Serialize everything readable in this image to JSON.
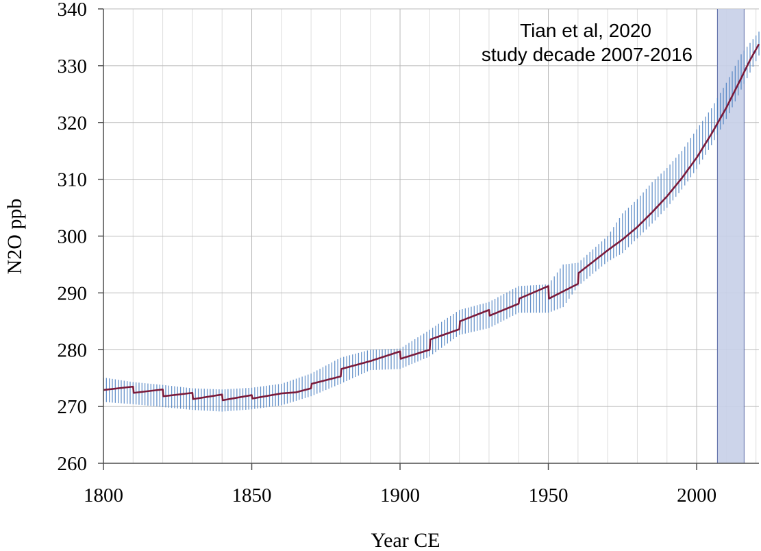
{
  "chart_data": {
    "type": "line",
    "title": "",
    "xlabel": "Year CE",
    "ylabel": "N2O ppb",
    "xlim": [
      1800,
      2021
    ],
    "ylim": [
      260,
      340
    ],
    "x_ticks": [
      "1800",
      "1850",
      "1900",
      "1950",
      "2000"
    ],
    "y_ticks": [
      "260",
      "270",
      "280",
      "290",
      "300",
      "310",
      "320",
      "330",
      "340"
    ],
    "grid": true,
    "series": [
      {
        "color": "#7a1a3a",
        "points": [
          [
            1800,
            272.9
          ],
          [
            1810,
            273.5
          ],
          [
            1810.2,
            272.4
          ],
          [
            1820,
            273.0
          ],
          [
            1820.2,
            271.8
          ],
          [
            1830,
            272.4
          ],
          [
            1830.2,
            271.3
          ],
          [
            1840,
            272.1
          ],
          [
            1840.2,
            271.1
          ],
          [
            1850,
            272.0
          ],
          [
            1850.2,
            271.4
          ],
          [
            1860,
            272.3
          ],
          [
            1865,
            272.5
          ],
          [
            1870,
            273.2
          ],
          [
            1870.2,
            274.0
          ],
          [
            1880,
            275.3
          ],
          [
            1880.2,
            276.6
          ],
          [
            1890,
            278.0
          ],
          [
            1900,
            279.7
          ],
          [
            1900.2,
            278.4
          ],
          [
            1910,
            280.0
          ],
          [
            1910.2,
            281.8
          ],
          [
            1920,
            283.6
          ],
          [
            1920.2,
            285.0
          ],
          [
            1930,
            287.0
          ],
          [
            1930.2,
            286.0
          ],
          [
            1940,
            288.1
          ],
          [
            1940.2,
            289.0
          ],
          [
            1950,
            291.2
          ],
          [
            1950.2,
            289.0
          ],
          [
            1960,
            291.6
          ],
          [
            1960.2,
            293.5
          ],
          [
            1970,
            297.5
          ],
          [
            1975,
            299.4
          ],
          [
            1980,
            301.6
          ],
          [
            1985,
            304.2
          ],
          [
            1990,
            307.0
          ],
          [
            1995,
            310.2
          ],
          [
            2000,
            313.8
          ],
          [
            2005,
            318.0
          ],
          [
            2010,
            322.6
          ],
          [
            2015,
            327.8
          ],
          [
            2018,
            331.0
          ],
          [
            2021,
            333.8
          ]
        ]
      }
    ],
    "uncertainty_band": {
      "color": "#4a7fc1",
      "style": "vertical hatching",
      "bounds": [
        [
          1800,
          270.8,
          275.1
        ],
        [
          1810,
          270.4,
          274.3
        ],
        [
          1820,
          269.9,
          273.8
        ],
        [
          1830,
          269.4,
          273.2
        ],
        [
          1840,
          269.1,
          273.0
        ],
        [
          1850,
          269.5,
          273.3
        ],
        [
          1860,
          270.2,
          274.0
        ],
        [
          1870,
          271.8,
          275.8
        ],
        [
          1880,
          274.0,
          278.6
        ],
        [
          1890,
          276.4,
          280.0
        ],
        [
          1900,
          276.6,
          280.2
        ],
        [
          1910,
          278.8,
          283.5
        ],
        [
          1920,
          282.6,
          287.0
        ],
        [
          1930,
          283.8,
          288.4
        ],
        [
          1940,
          286.5,
          291.2
        ],
        [
          1950,
          286.5,
          291.5
        ],
        [
          1955,
          287.5,
          295.0
        ],
        [
          1960,
          291.2,
          295.3
        ],
        [
          1970,
          295.5,
          300.0
        ],
        [
          1975,
          297.0,
          304.0
        ],
        [
          1980,
          299.6,
          306.5
        ],
        [
          1985,
          302.2,
          309.5
        ],
        [
          1990,
          305.0,
          312.0
        ],
        [
          1995,
          308.2,
          315.0
        ],
        [
          2000,
          311.8,
          318.8
        ],
        [
          2005,
          316.0,
          322.5
        ],
        [
          2010,
          320.6,
          327.0
        ],
        [
          2015,
          325.8,
          332.0
        ],
        [
          2021,
          331.8,
          336.0
        ]
      ]
    },
    "study_period": {
      "start": 2007,
      "end": 2016,
      "fill": "#c7cfe8",
      "edge": "#5a6aa6"
    },
    "annotations": [
      "Tian et al, 2020",
      "study decade 2007-2016"
    ]
  }
}
